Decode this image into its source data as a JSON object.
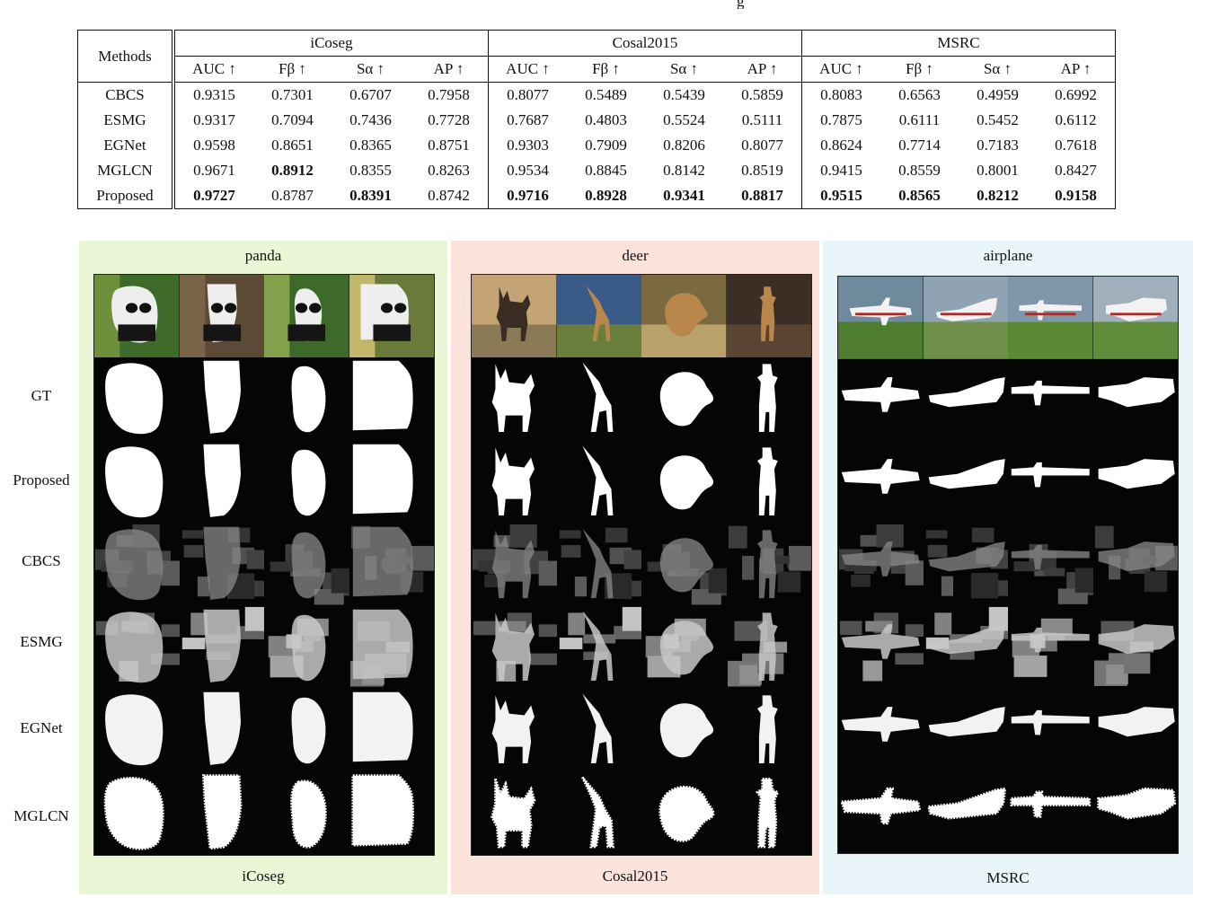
{
  "page_fragment": "g",
  "table": {
    "methods_header": "Methods",
    "groups": [
      "iCoseg",
      "Cosal2015",
      "MSRC"
    ],
    "metrics": [
      "AUC ↑",
      "Fβ ↑",
      "Sα ↑",
      "AP ↑"
    ],
    "rows": [
      {
        "method": "CBCS",
        "values": [
          "0.9315",
          "0.7301",
          "0.6707",
          "0.7958",
          "0.8077",
          "0.5489",
          "0.5439",
          "0.5859",
          "0.8083",
          "0.6563",
          "0.4959",
          "0.6992"
        ],
        "bold": []
      },
      {
        "method": "ESMG",
        "values": [
          "0.9317",
          "0.7094",
          "0.7436",
          "0.7728",
          "0.7687",
          "0.4803",
          "0.5524",
          "0.5111",
          "0.7875",
          "0.6111",
          "0.5452",
          "0.6112"
        ],
        "bold": []
      },
      {
        "method": "EGNet",
        "values": [
          "0.9598",
          "0.8651",
          "0.8365",
          "0.8751",
          "0.9303",
          "0.7909",
          "0.8206",
          "0.8077",
          "0.8624",
          "0.7714",
          "0.7183",
          "0.7618"
        ],
        "bold": []
      },
      {
        "method": "MGLCN",
        "values": [
          "0.9671",
          "0.8912",
          "0.8355",
          "0.8263",
          "0.9534",
          "0.8845",
          "0.8142",
          "0.8519",
          "0.9415",
          "0.8559",
          "0.8001",
          "0.8427"
        ],
        "bold": [
          1
        ]
      },
      {
        "method": "Proposed",
        "values": [
          "0.9727",
          "0.8787",
          "0.8391",
          "0.8742",
          "0.9716",
          "0.8928",
          "0.9341",
          "0.8817",
          "0.9515",
          "0.8565",
          "0.8212",
          "0.9158"
        ],
        "bold": [
          0,
          2,
          4,
          5,
          6,
          7,
          8,
          9,
          10,
          11
        ]
      }
    ]
  },
  "figure": {
    "row_labels": [
      "GT",
      "Proposed",
      "CBCS",
      "ESMG",
      "EGNet",
      "MGLCN"
    ],
    "panels": [
      {
        "title": "panda",
        "caption": "iCoseg",
        "bg": "#eaf6d6",
        "subject": "panda"
      },
      {
        "title": "deer",
        "caption": "Cosal2015",
        "bg": "#fbe3dc",
        "subject": "deer"
      },
      {
        "title": "airplane",
        "caption": "MSRC",
        "bg": "#e8f4f8",
        "subject": "airplane"
      }
    ]
  }
}
